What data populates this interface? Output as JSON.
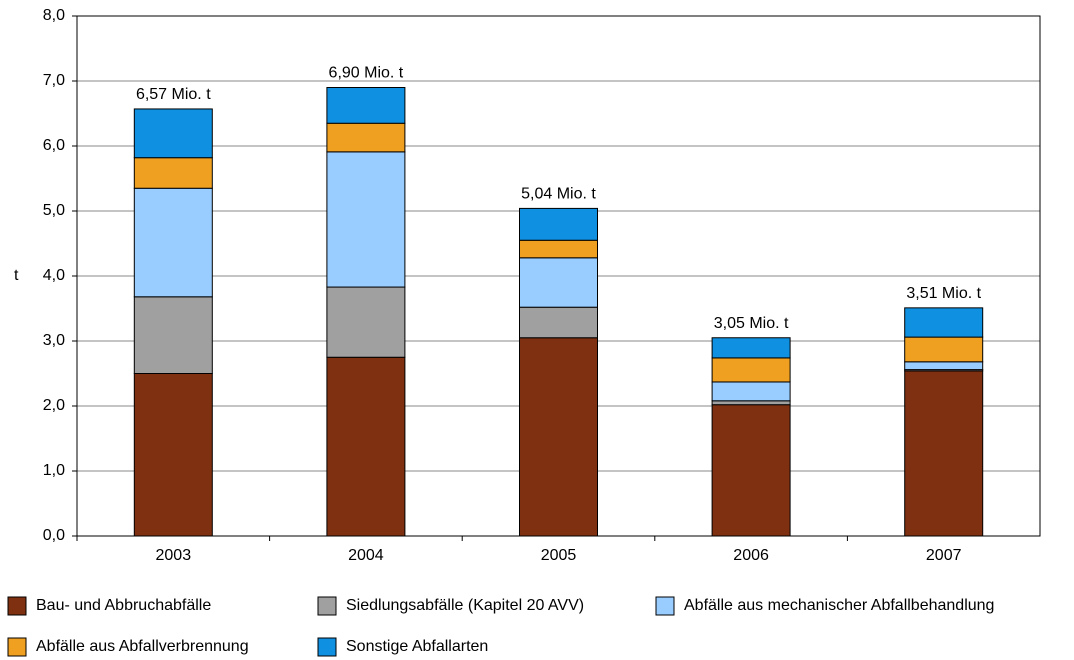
{
  "chart_data": {
    "type": "stacked_bar",
    "ylabel": "t",
    "categories": [
      "2003",
      "2004",
      "2005",
      "2006",
      "2007"
    ],
    "series": [
      {
        "name": "Bau- und Abbruchabfälle",
        "color": "#7f3010",
        "values": [
          2.5,
          2.75,
          3.05,
          2.02,
          2.54
        ]
      },
      {
        "name": "Siedlungsabfälle (Kapitel 20 AVV)",
        "color": "#a0a0a0",
        "values": [
          1.18,
          1.08,
          0.47,
          0.06,
          0.02
        ]
      },
      {
        "name": "Abfälle aus mechanischer Abfallbehandlung",
        "color": "#99ccff",
        "values": [
          1.67,
          2.08,
          0.76,
          0.29,
          0.12
        ]
      },
      {
        "name": "Abfälle aus Abfallverbrennung",
        "color": "#f0a020",
        "values": [
          0.47,
          0.44,
          0.27,
          0.37,
          0.38
        ]
      },
      {
        "name": "Sonstige Abfallarten",
        "color": "#1090e0",
        "values": [
          0.75,
          0.55,
          0.49,
          0.31,
          0.45
        ]
      }
    ],
    "totals": {
      "values": [
        6.57,
        6.9,
        5.04,
        3.05,
        3.51
      ],
      "value_labels": [
        "6,57 Mio. t",
        "6,90 Mio. t",
        "5,04 Mio. t",
        "3,05 Mio. t",
        "3,51 Mio. t"
      ]
    },
    "ylim": [
      0,
      8
    ],
    "yticks": [
      {
        "value": 0,
        "label": "0,0"
      },
      {
        "value": 1,
        "label": "1,0"
      },
      {
        "value": 2,
        "label": "2,0"
      },
      {
        "value": 3,
        "label": "3,0"
      },
      {
        "value": 4,
        "label": "4,0"
      },
      {
        "value": 5,
        "label": "5,0"
      },
      {
        "value": 6,
        "label": "6,0"
      },
      {
        "value": 7,
        "label": "7,0"
      },
      {
        "value": 8,
        "label": "8,0"
      }
    ],
    "grid": true
  }
}
